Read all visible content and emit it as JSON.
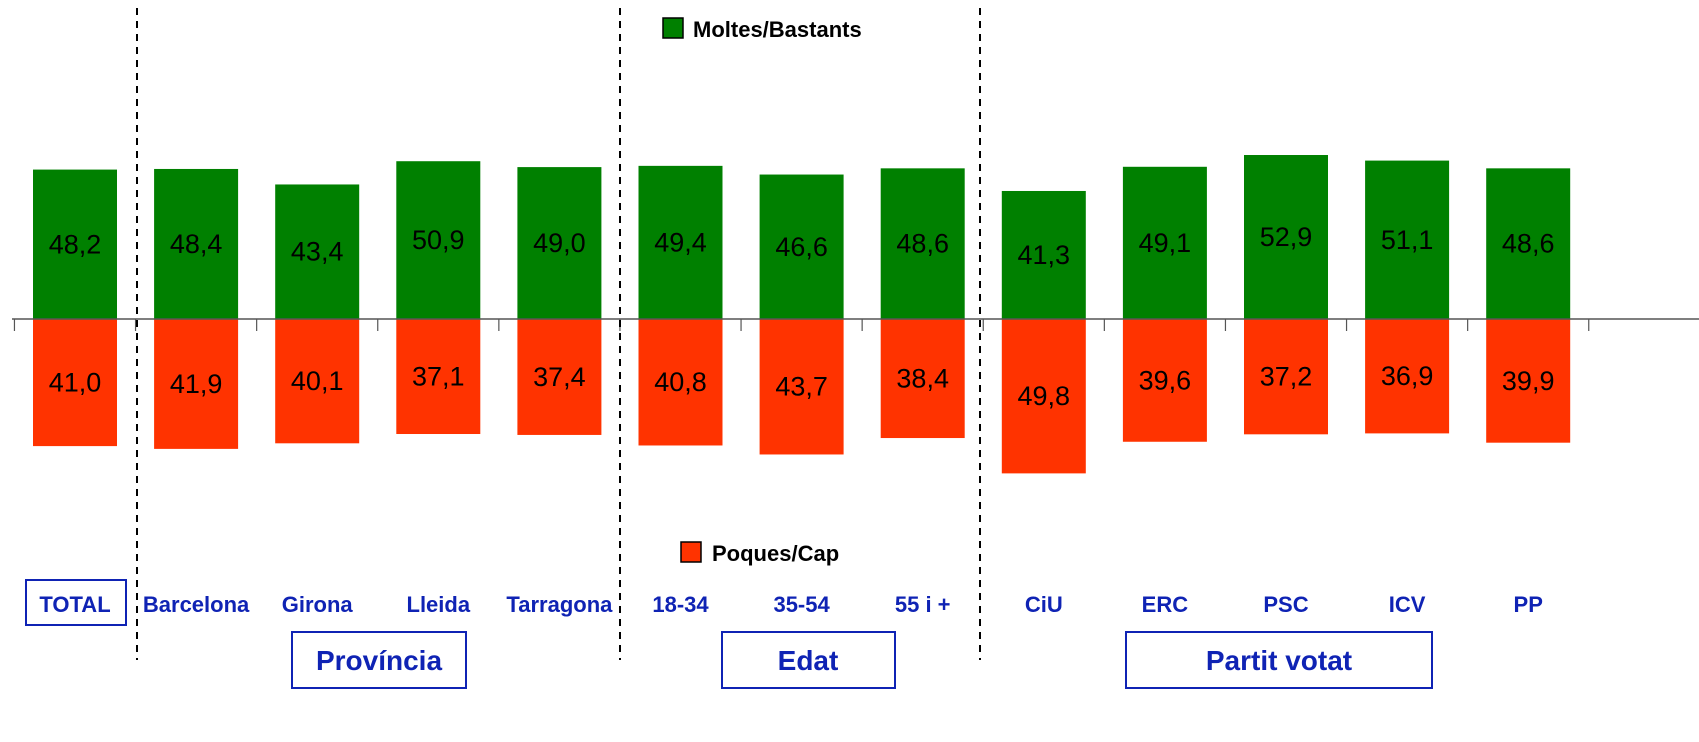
{
  "chart_data": {
    "type": "bar",
    "categories": [
      "TOTAL",
      "Barcelona",
      "Girona",
      "Lleida",
      "Tarragona",
      "18-34",
      "35-54",
      "55 i +",
      "CiU",
      "ERC",
      "PSC",
      "ICV",
      "PP"
    ],
    "series": [
      {
        "name": "Moltes/Bastants",
        "color": "#008000",
        "values": [
          48.2,
          48.4,
          43.4,
          50.9,
          49.0,
          49.4,
          46.6,
          48.6,
          41.3,
          49.1,
          52.9,
          51.1,
          48.6
        ],
        "labels": [
          "48,2",
          "48,4",
          "43,4",
          "50,9",
          "49,0",
          "49,4",
          "46,6",
          "48,6",
          "41,3",
          "49,1",
          "52,9",
          "51,1",
          "48,6"
        ]
      },
      {
        "name": "Poques/Cap",
        "color": "#ff3300",
        "values": [
          41.0,
          41.9,
          40.1,
          37.1,
          37.4,
          40.8,
          43.7,
          38.4,
          49.8,
          39.6,
          37.2,
          36.9,
          39.9
        ],
        "labels": [
          "41,0",
          "41,9",
          "40,1",
          "37,1",
          "37,4",
          "40,8",
          "43,7",
          "38,4",
          "49,8",
          "39,6",
          "37,2",
          "36,9",
          "39,9"
        ]
      }
    ],
    "groups": [
      {
        "label": "Província",
        "categories": [
          "Barcelona",
          "Girona",
          "Lleida",
          "Tarragona"
        ]
      },
      {
        "label": "Edat",
        "categories": [
          "18-34",
          "35-54",
          "55 i +"
        ]
      },
      {
        "label": "Partit votat",
        "categories": [
          "CiU",
          "ERC",
          "PSC",
          "ICV",
          "PP"
        ]
      }
    ],
    "title": "",
    "xlabel": "",
    "ylabel": "",
    "grid": false,
    "legend": "top-center / bottom-center"
  }
}
